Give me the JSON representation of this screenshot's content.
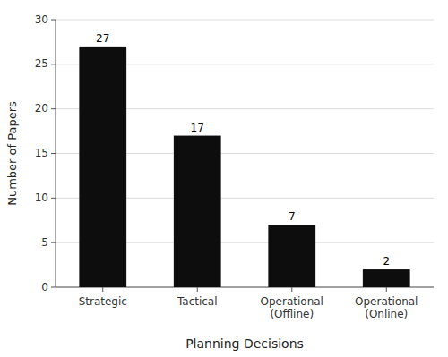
{
  "chart_data": {
    "type": "bar",
    "categories": [
      "Strategic",
      "Tactical",
      "Operational\n(Offline)",
      "Operational\n(Online)"
    ],
    "values": [
      27,
      17,
      7,
      2
    ],
    "color": "#0d0d0d",
    "xlabel": "Planning Decisions",
    "ylabel": "Number of Papers",
    "ylim": [
      0,
      30
    ],
    "yticks": [
      0,
      5,
      10,
      15,
      20,
      25,
      30
    ],
    "grid": true,
    "data_labels": true
  }
}
